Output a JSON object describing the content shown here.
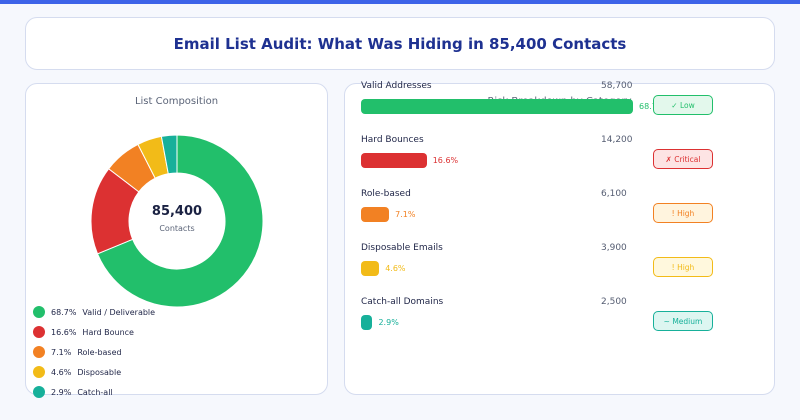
{
  "title": "Email List Audit: What Was Hiding in 85,400 Contacts",
  "chart_data": [
    {
      "type": "pie",
      "title": "List Composition",
      "center_value": "85,400",
      "center_label": "Contacts",
      "slices": [
        {
          "label": "Valid / Deliverable",
          "pct_label": "68.7%",
          "value": 68.7,
          "color": "#22bf6b"
        },
        {
          "label": "Hard Bounce",
          "pct_label": "16.6%",
          "value": 16.6,
          "color": "#dc3132"
        },
        {
          "label": "Role-based",
          "pct_label": "7.1%",
          "value": 7.1,
          "color": "#f28123"
        },
        {
          "label": "Disposable",
          "pct_label": "4.6%",
          "value": 4.6,
          "color": "#f2bb18"
        },
        {
          "label": "Catch-all",
          "pct_label": "2.9%",
          "value": 2.9,
          "color": "#17b09a"
        }
      ],
      "legend": "bottom-left"
    },
    {
      "type": "bar",
      "title": "Risk Breakdown by Category",
      "rows": [
        {
          "name": "Valid Addresses",
          "count": "58,700",
          "pct_label": "68.7%",
          "value": 68.7,
          "color": "#22bf6b",
          "risk": "✓ Low",
          "risk_color": "#22bf6b",
          "risk_bg": "#e3f8ec"
        },
        {
          "name": "Hard Bounces",
          "count": "14,200",
          "pct_label": "16.6%",
          "value": 16.6,
          "color": "#dc3132",
          "risk": "✗ Critical",
          "risk_color": "#dc3132",
          "risk_bg": "#fde4e4"
        },
        {
          "name": "Role-based",
          "count": "6,100",
          "pct_label": "7.1%",
          "value": 7.1,
          "color": "#f28123",
          "risk": "! High",
          "risk_color": "#f28123",
          "risk_bg": "#fff4de"
        },
        {
          "name": "Disposable Emails",
          "count": "3,900",
          "pct_label": "4.6%",
          "value": 4.6,
          "color": "#f2bb18",
          "risk": "! High",
          "risk_color": "#f2bb18",
          "risk_bg": "#fff8dd"
        },
        {
          "name": "Catch-all Domains",
          "count": "2,500",
          "pct_label": "2.9%",
          "value": 2.9,
          "color": "#17b09a",
          "risk": "~ Medium",
          "risk_color": "#17b09a",
          "risk_bg": "#ddf6f1"
        }
      ]
    }
  ]
}
